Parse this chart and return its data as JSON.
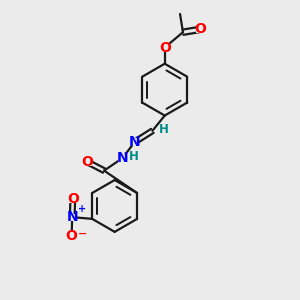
{
  "bg_color": "#ebebeb",
  "bond_color": "#1a1a1a",
  "bond_width": 1.6,
  "colors": {
    "O": "#ff0000",
    "N": "#0000ff",
    "H_teal": "#008b8b",
    "C_black": "#1a1a1a"
  },
  "font_size_atom": 10,
  "font_size_small": 8.5,
  "font_size_charge": 7
}
